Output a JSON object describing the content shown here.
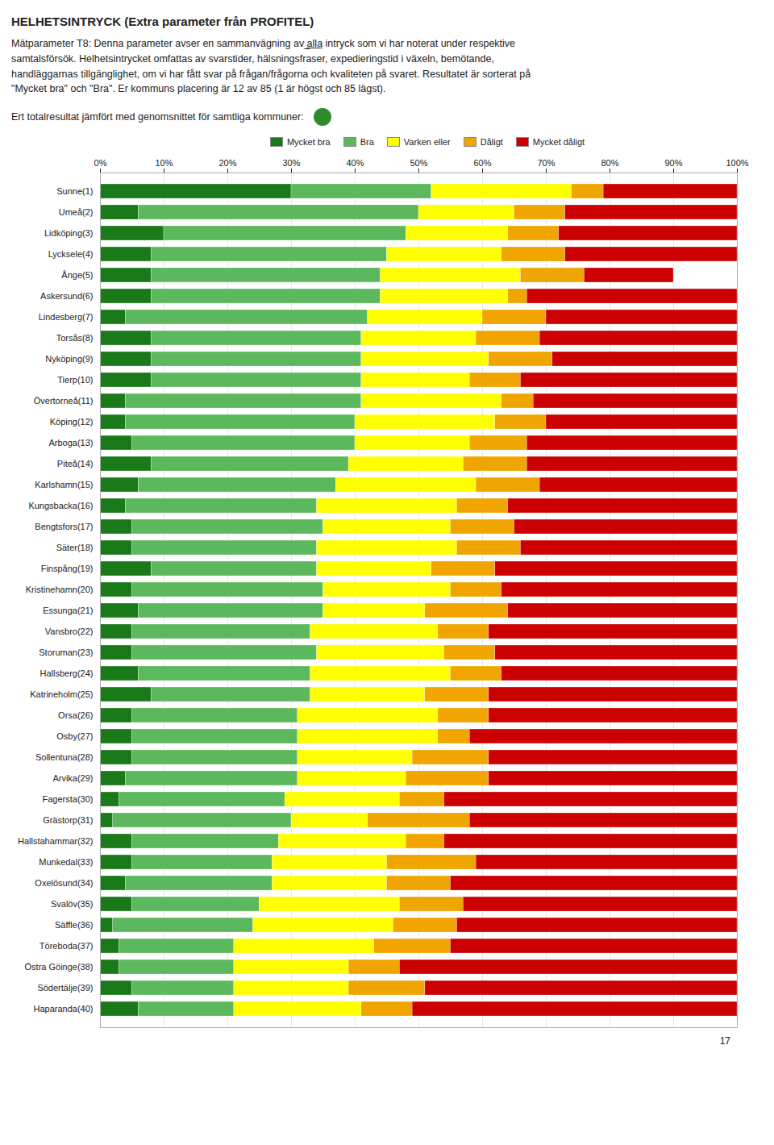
{
  "chart_data": {
    "type": "bar",
    "orientation": "horizontal",
    "stacked": true,
    "title": "HELHETSINTRYCK (Extra parameter från PROFITEL)",
    "subtitle": "Mätparameter T8: Denna parameter avser en sammanvägning av ̲a̲l̲l̲a̲ intryck som vi har noterat under respektive\nsamtalsförsök. Helhetsintrycket omfattas av svarstider, hälsningsfraser, expedieringstid i växeln, bemötande,\nhandläggarnas tillgänglighet, om vi har fått svar på frågan/frågorna och kvaliteten på svaret. Resultatet är sorterat på\n\"Mycket bra\" och \"Bra\". Er kommuns placering är 12 av 85 (1 är högst och 85 lägst).",
    "annotations": [
      "Ert totalresultat jämfört med genomsnittet för samtliga kommuner:",
      "17"
    ],
    "categories": [
      "Sunne(1)",
      "Umeå(2)",
      "Lidköping(3)",
      "Lycksele(4)",
      "Ånge(5)",
      "Askersund(6)",
      "Lindesberg(7)",
      "Torsås(8)",
      "Nyköping(9)",
      "Tierp(10)",
      "Övertorneå(11)",
      "Köping(12)",
      "Arboga(13)",
      "Piteå(14)",
      "Karlshamn(15)",
      "Kungsbacka(16)",
      "Bengtsfors(17)",
      "Säter(18)",
      "Finspång(19)",
      "Kristinehamn(20)",
      "Essunga(21)",
      "Vansbro(22)",
      "Storuman(23)",
      "Hallsberg(24)",
      "Katrineholm(25)",
      "Orsa(26)",
      "Osby(27)",
      "Sollentuna(28)",
      "Arvika(29)",
      "Fagersta(30)",
      "Grästorp(31)",
      "Hallstahammar(32)",
      "Munkedal(33)",
      "Oxelösund(34)",
      "Svalöv(35)",
      "Säffle(36)",
      "Töreboda(37)",
      "Östra Göinge(38)",
      "Södertälje(39)",
      "Haparanda(40)"
    ],
    "series": [
      {
        "name": "Mycket bra",
        "color": "#1a7a1a",
        "values": [
          30,
          6,
          10,
          8,
          8,
          8,
          4,
          8,
          8,
          8,
          4,
          4,
          5,
          8,
          6,
          4,
          5,
          5,
          8,
          5,
          6,
          5,
          5,
          6,
          8,
          5,
          5,
          5,
          4,
          3,
          2,
          5,
          5,
          4,
          5,
          2,
          3,
          3,
          5,
          6
        ]
      },
      {
        "name": "Bra",
        "color": "#5cb85c",
        "values": [
          22,
          44,
          38,
          37,
          36,
          36,
          38,
          33,
          33,
          33,
          37,
          36,
          35,
          31,
          31,
          30,
          30,
          29,
          26,
          30,
          29,
          28,
          29,
          27,
          25,
          26,
          26,
          26,
          27,
          26,
          28,
          23,
          22,
          23,
          20,
          22,
          18,
          18,
          16,
          15
        ]
      },
      {
        "name": "Varken eller",
        "color": "#ffff00",
        "values": [
          22,
          15,
          16,
          18,
          22,
          20,
          18,
          18,
          20,
          17,
          22,
          22,
          18,
          18,
          22,
          22,
          20,
          22,
          18,
          20,
          16,
          20,
          20,
          22,
          18,
          22,
          22,
          18,
          17,
          18,
          12,
          20,
          18,
          18,
          22,
          22,
          22,
          18,
          18,
          20
        ]
      },
      {
        "name": "Dåligt",
        "color": "#f0a500",
        "values": [
          5,
          8,
          8,
          10,
          10,
          3,
          10,
          10,
          10,
          8,
          5,
          8,
          9,
          10,
          10,
          8,
          10,
          10,
          10,
          8,
          13,
          8,
          8,
          8,
          10,
          8,
          5,
          12,
          13,
          7,
          16,
          6,
          14,
          10,
          10,
          10,
          12,
          8,
          12,
          8
        ]
      },
      {
        "name": "Mycket dåligt",
        "color": "#cc0000",
        "values": [
          21,
          27,
          28,
          27,
          14,
          33,
          30,
          31,
          29,
          34,
          32,
          30,
          33,
          33,
          31,
          36,
          35,
          34,
          38,
          37,
          36,
          39,
          38,
          37,
          39,
          39,
          42,
          39,
          39,
          46,
          42,
          46,
          41,
          45,
          43,
          44,
          45,
          53,
          49,
          51
        ]
      }
    ],
    "xlim": [
      0,
      100
    ],
    "xticks": [
      {
        "value": 0,
        "label": "0%"
      },
      {
        "value": 10,
        "label": "10%"
      },
      {
        "value": 20,
        "label": "20%"
      },
      {
        "value": 30,
        "label": "30%"
      },
      {
        "value": 40,
        "label": "40%"
      },
      {
        "value": 50,
        "label": "50%"
      },
      {
        "value": 60,
        "label": "60%"
      },
      {
        "value": 70,
        "label": "70%"
      },
      {
        "value": 80,
        "label": "80%"
      },
      {
        "value": 90,
        "label": "90%"
      },
      {
        "value": 100,
        "label": "100%"
      }
    ],
    "grid": true,
    "legend": "top"
  }
}
